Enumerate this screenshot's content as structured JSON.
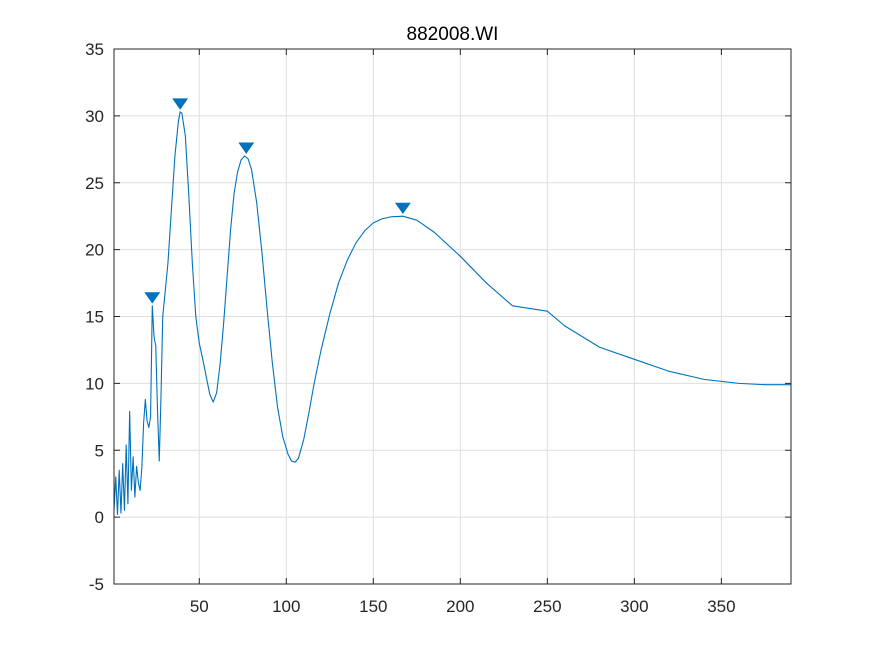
{
  "chart_data": {
    "type": "line",
    "title": "882008.WI",
    "xlabel": "",
    "ylabel": "",
    "xlim": [
      1,
      390
    ],
    "ylim": [
      -5,
      35
    ],
    "xticks": [
      50,
      100,
      150,
      200,
      250,
      300,
      350
    ],
    "yticks": [
      -5,
      0,
      5,
      10,
      15,
      20,
      25,
      30,
      35
    ],
    "grid": true,
    "color": "#0072BD",
    "series": [
      {
        "points": [
          [
            1,
            0.5
          ],
          [
            2,
            3
          ],
          [
            3,
            0.2
          ],
          [
            4,
            3.5
          ],
          [
            5,
            0.3
          ],
          [
            6,
            4
          ],
          [
            7,
            0.5
          ],
          [
            8,
            5.4
          ],
          [
            9,
            1
          ],
          [
            10,
            7.9
          ],
          [
            11,
            2
          ],
          [
            12,
            4.5
          ],
          [
            13,
            1.5
          ],
          [
            14,
            3.8
          ],
          [
            15,
            2.6
          ],
          [
            16,
            2
          ],
          [
            17,
            3.7
          ],
          [
            18,
            7
          ],
          [
            19,
            8.8
          ],
          [
            20,
            7.2
          ],
          [
            21,
            6.7
          ],
          [
            22,
            7.5
          ],
          [
            23,
            15.8
          ],
          [
            24,
            13.5
          ],
          [
            25,
            12.8
          ],
          [
            26,
            8
          ],
          [
            27,
            4.2
          ],
          [
            28,
            9
          ],
          [
            29,
            15
          ],
          [
            30,
            16.3
          ],
          [
            32,
            19
          ],
          [
            34,
            23
          ],
          [
            36,
            27
          ],
          [
            38,
            29.6
          ],
          [
            39,
            30.3
          ],
          [
            40,
            30.2
          ],
          [
            42,
            28.5
          ],
          [
            44,
            24
          ],
          [
            46,
            19
          ],
          [
            48,
            15
          ],
          [
            50,
            13
          ],
          [
            52,
            11.8
          ],
          [
            54,
            10.5
          ],
          [
            56,
            9.2
          ],
          [
            58,
            8.6
          ],
          [
            60,
            9.3
          ],
          [
            62,
            11.5
          ],
          [
            64,
            14.5
          ],
          [
            66,
            18
          ],
          [
            68,
            21.5
          ],
          [
            70,
            24.2
          ],
          [
            72,
            25.8
          ],
          [
            74,
            26.7
          ],
          [
            76,
            27
          ],
          [
            78,
            26.8
          ],
          [
            80,
            26
          ],
          [
            83,
            23.5
          ],
          [
            86,
            19.8
          ],
          [
            89,
            15.5
          ],
          [
            92,
            11.5
          ],
          [
            95,
            8.2
          ],
          [
            98,
            6
          ],
          [
            101,
            4.7
          ],
          [
            103,
            4.2
          ],
          [
            105,
            4.1
          ],
          [
            107,
            4.4
          ],
          [
            110,
            5.8
          ],
          [
            113,
            7.8
          ],
          [
            116,
            10
          ],
          [
            120,
            12.5
          ],
          [
            125,
            15.2
          ],
          [
            130,
            17.5
          ],
          [
            135,
            19.2
          ],
          [
            140,
            20.5
          ],
          [
            145,
            21.4
          ],
          [
            150,
            22
          ],
          [
            155,
            22.3
          ],
          [
            160,
            22.45
          ],
          [
            167,
            22.5
          ],
          [
            175,
            22.2
          ],
          [
            185,
            21.3
          ],
          [
            200,
            19.5
          ],
          [
            215,
            17.5
          ],
          [
            230,
            15.8
          ],
          [
            250,
            15.4
          ],
          [
            260,
            14.3
          ],
          [
            280,
            12.7
          ],
          [
            300,
            11.8
          ],
          [
            320,
            10.9
          ],
          [
            340,
            10.3
          ],
          [
            360,
            10
          ],
          [
            375,
            9.9
          ],
          [
            390,
            9.9
          ]
        ]
      }
    ],
    "peaks": [
      {
        "x": 23,
        "y": 15.8
      },
      {
        "x": 39,
        "y": 30.3
      },
      {
        "x": 77,
        "y": 27
      },
      {
        "x": 167,
        "y": 22.5
      }
    ]
  }
}
